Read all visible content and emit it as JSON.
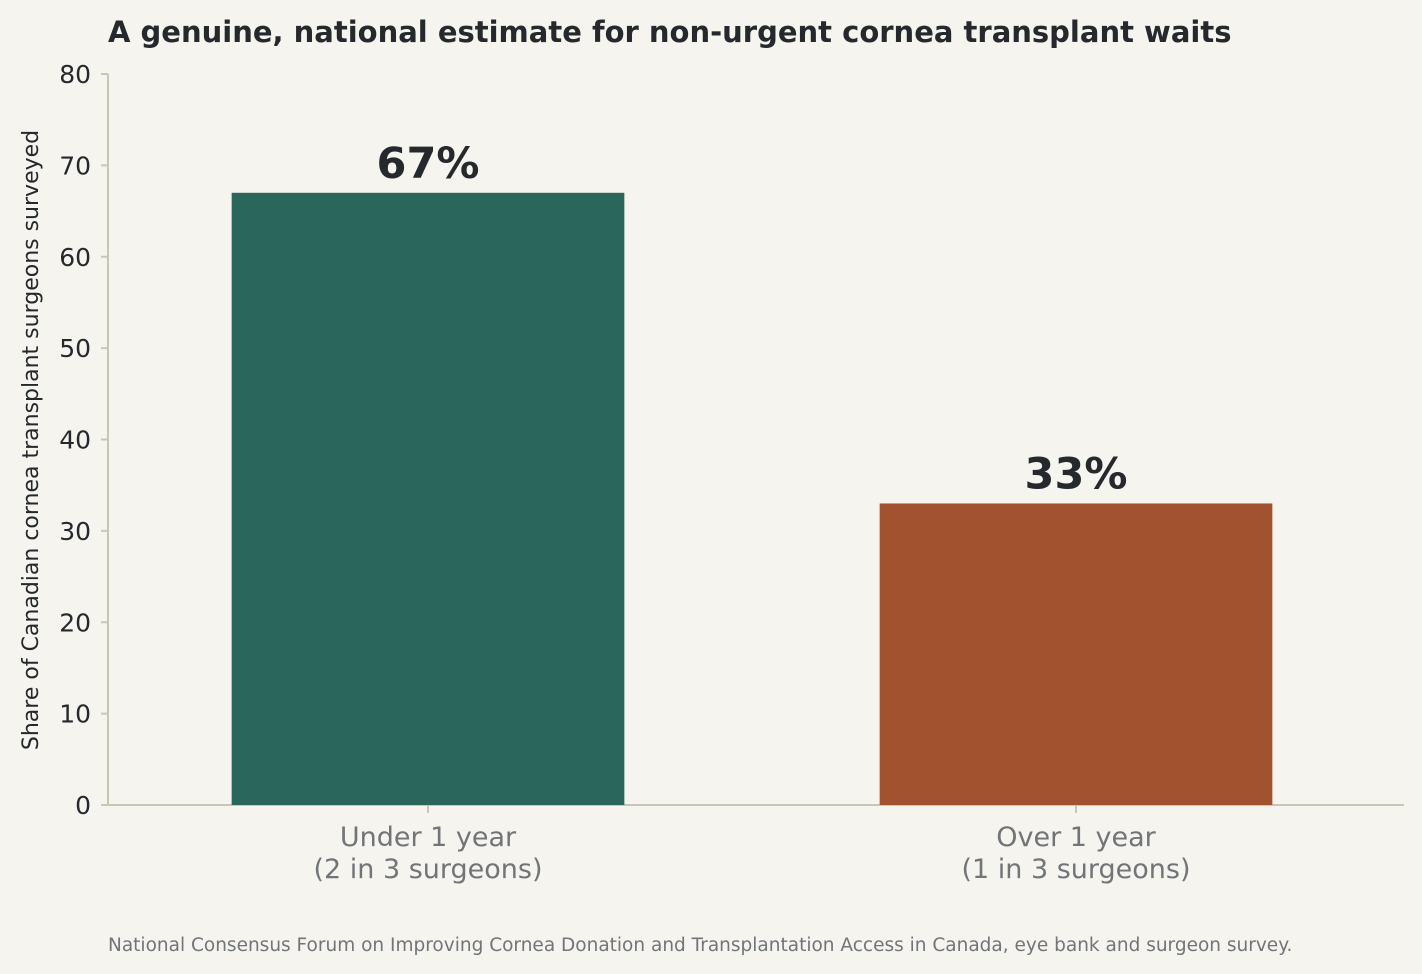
{
  "chart_data": {
    "type": "bar",
    "title": "A genuine, national estimate for non-urgent cornea transplant waits",
    "xlabel": "",
    "ylabel": "Share of Canadian cornea transplant surgeons surveyed",
    "ylim": [
      0,
      80
    ],
    "yticks": [
      "0",
      "10",
      "20",
      "30",
      "40",
      "50",
      "60",
      "70",
      "80"
    ],
    "grid": false,
    "legend": "none",
    "categories": [
      [
        "Under 1 year",
        "(2 in 3 surgeons)"
      ],
      [
        "Over 1 year",
        "(1 in 3 surgeons)"
      ]
    ],
    "values": [
      67,
      33
    ],
    "value_labels": [
      "67%",
      "33%"
    ],
    "colors": [
      "#2b665a",
      "#a2522f"
    ],
    "source": "National Consensus Forum on Improving Cornea Donation and Transplantation Access in Canada, eye bank and surgeon survey."
  }
}
